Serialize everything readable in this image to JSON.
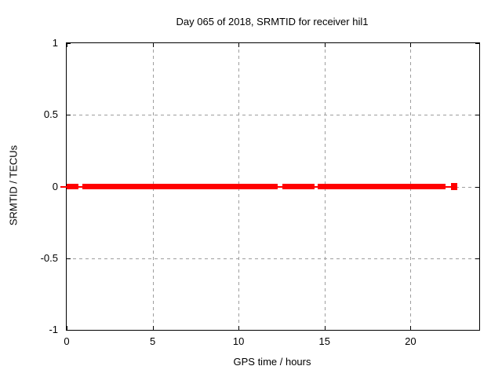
{
  "colors": {
    "series": "#ff0000",
    "grid": "#9e9e9e",
    "border": "#000000",
    "text": "#000000",
    "background": "#ffffff"
  },
  "chart_data": {
    "type": "line",
    "title": "Day 065 of 2018, SRMTID for receiver hil1",
    "xlabel": "GPS time / hours",
    "ylabel": "SRMTID / TECUs",
    "xlim": [
      0,
      24
    ],
    "ylim": [
      -1,
      1
    ],
    "grid": true,
    "legend": "none",
    "xticks": {
      "values": [
        0,
        5,
        10,
        15,
        20
      ],
      "labels": [
        "0",
        "5",
        "10",
        "15",
        "20"
      ]
    },
    "yticks": {
      "values": [
        1,
        0.5,
        0,
        -0.5,
        -1
      ],
      "labels": [
        "1",
        "0.5",
        "0",
        "-0.5",
        "-1"
      ]
    },
    "series": [
      {
        "name": "SRMTID",
        "color": "#ff0000",
        "constant_y": 0,
        "thick_segments_hours": [
          [
            0.0,
            0.7,
            7
          ],
          [
            0.91,
            12.26,
            7
          ],
          [
            12.54,
            14.4,
            7
          ],
          [
            14.6,
            22.05,
            7
          ],
          [
            22.38,
            22.74,
            9
          ]
        ],
        "thin_segments_hours": [
          [
            -0.36,
            0.0
          ],
          [
            0.7,
            0.91
          ],
          [
            12.26,
            12.54
          ],
          [
            14.4,
            14.6
          ],
          [
            22.05,
            22.38
          ]
        ]
      }
    ]
  }
}
